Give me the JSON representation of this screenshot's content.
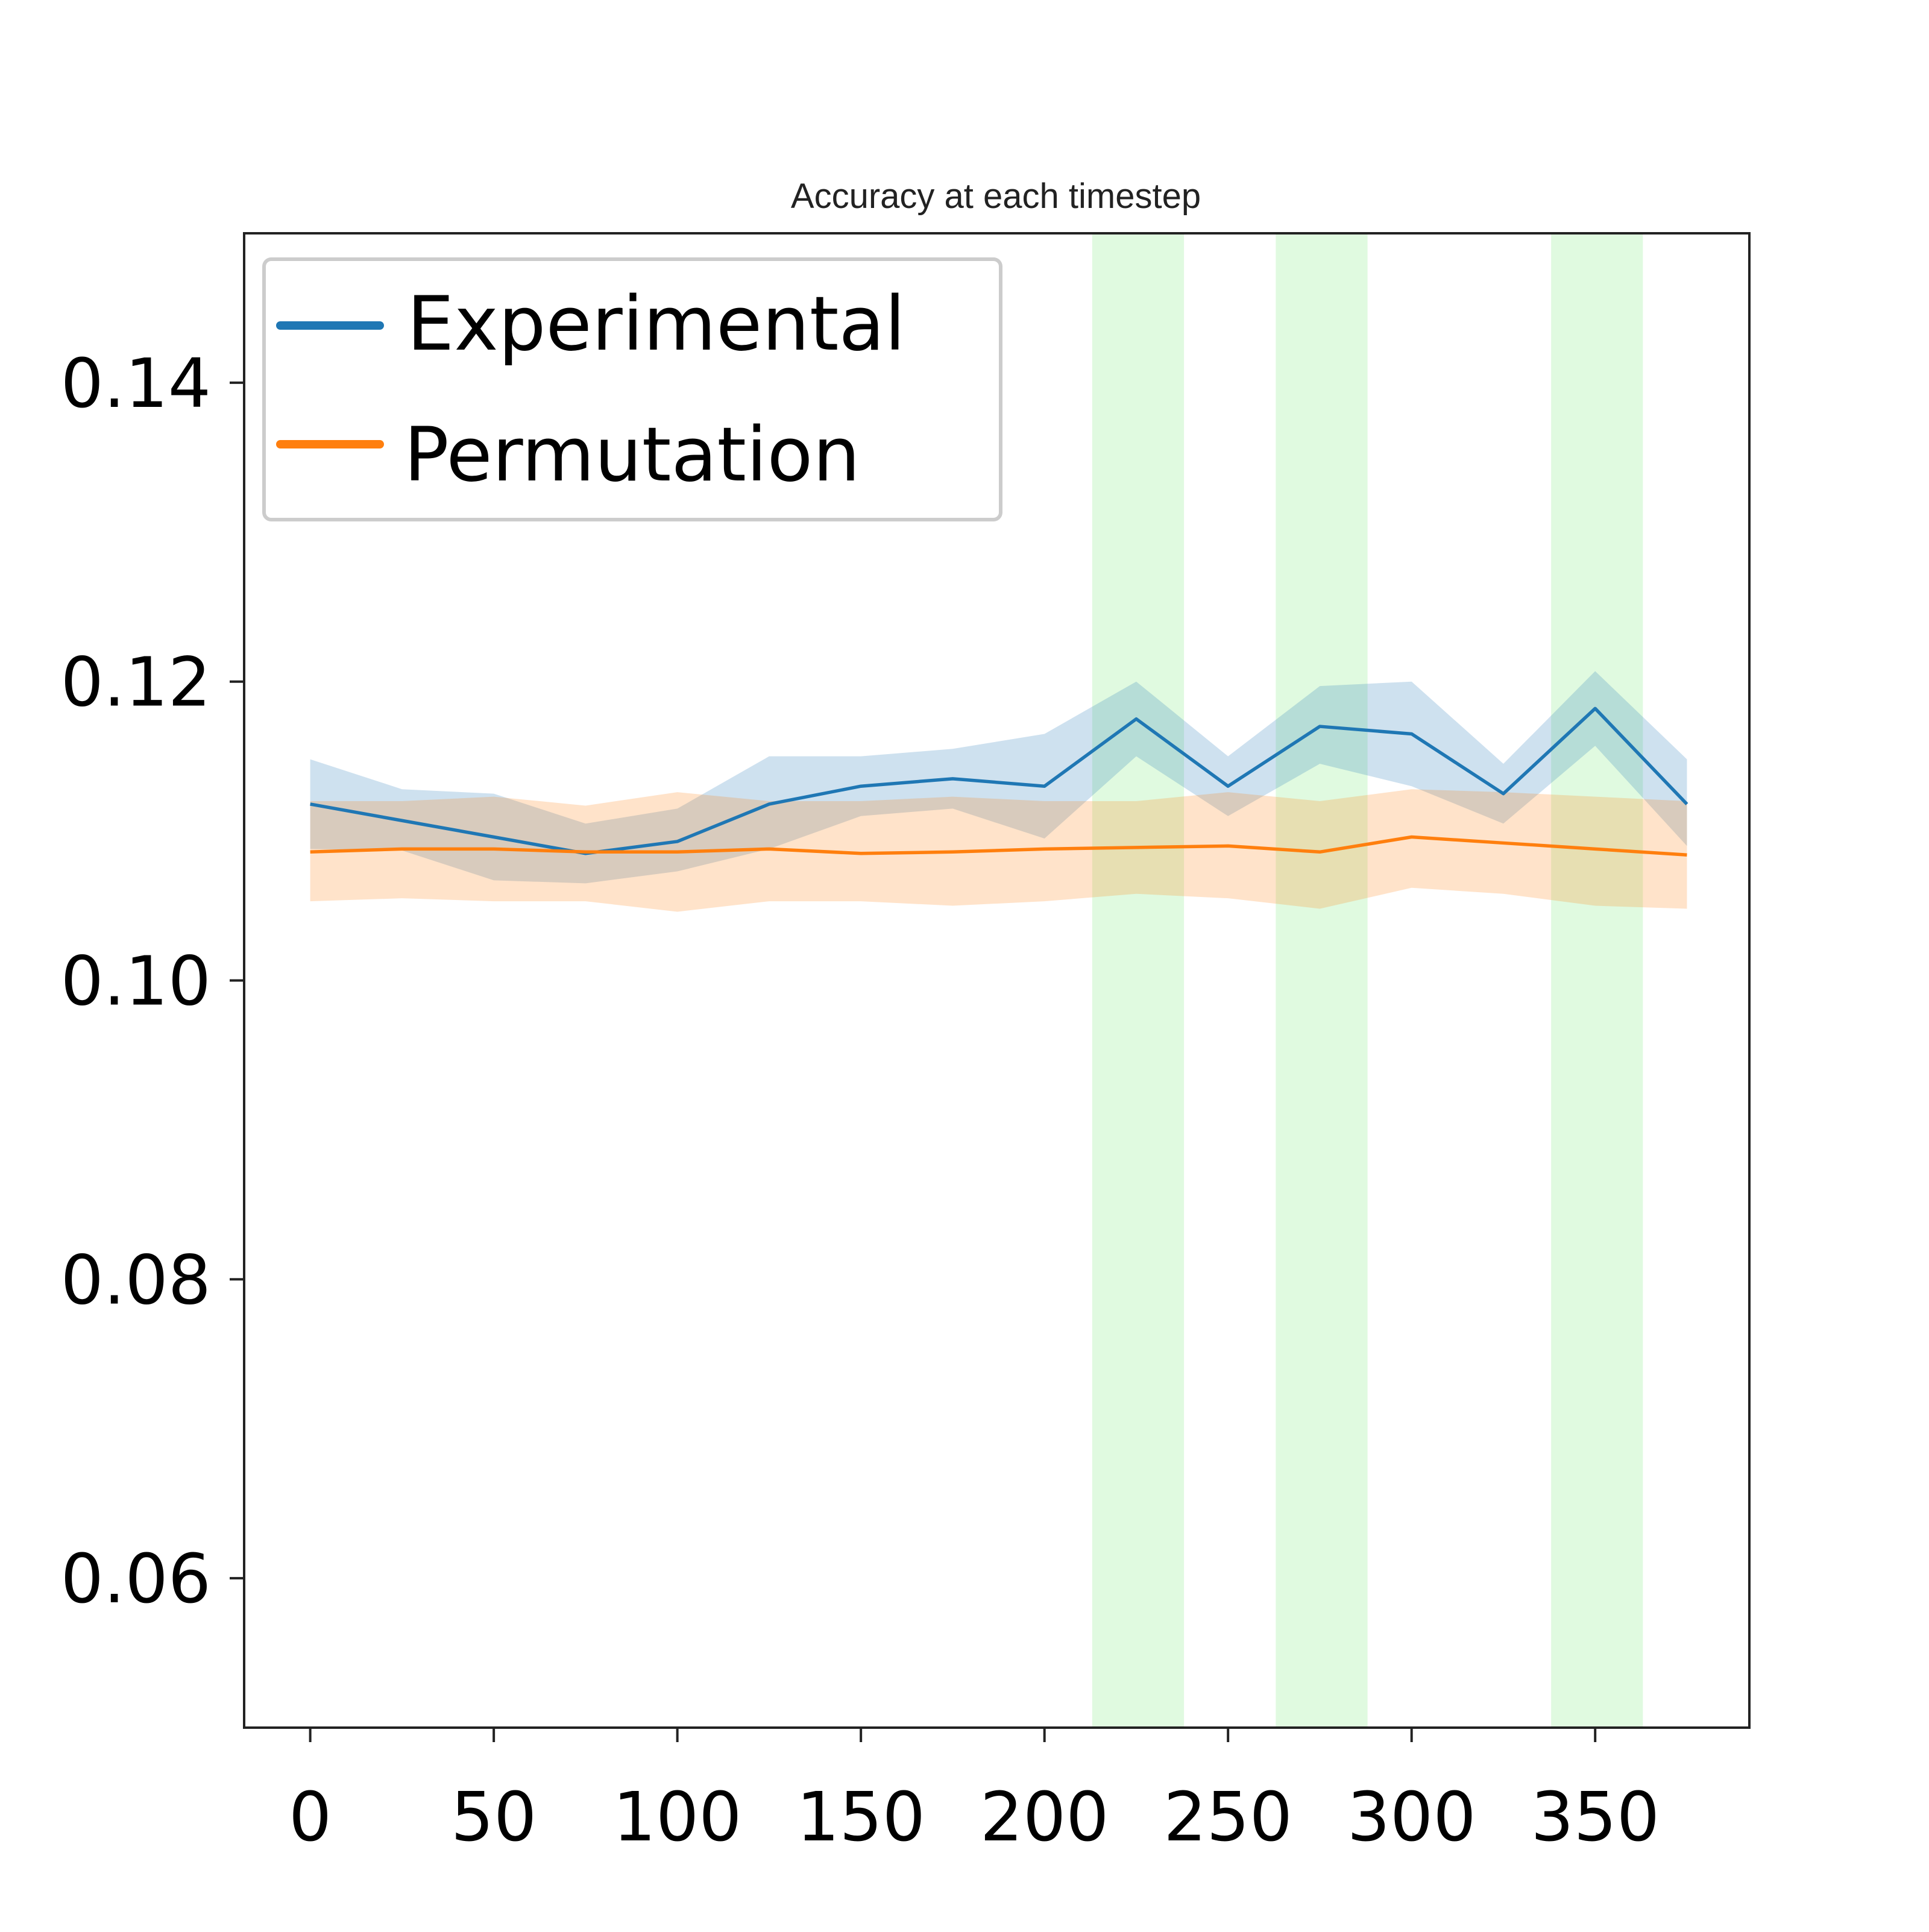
{
  "chart_data": {
    "type": "line",
    "title": "Accuracy at each timestep",
    "xlabel": "",
    "ylabel": "",
    "xlim": [
      -18,
      392
    ],
    "ylim": [
      0.05,
      0.15
    ],
    "x_ticks": [
      0,
      50,
      100,
      150,
      200,
      250,
      300,
      350
    ],
    "y_ticks": [
      0.06,
      0.08,
      0.1,
      0.12,
      0.14
    ],
    "y_tick_labels": [
      "0.06",
      "0.08",
      "0.10",
      "0.12",
      "0.14"
    ],
    "grid": false,
    "legend_position": "upper-left",
    "highlight_bands": [
      {
        "from": 213,
        "to": 238,
        "color": "#90ee90"
      },
      {
        "from": 263,
        "to": 288,
        "color": "#90ee90"
      },
      {
        "from": 338,
        "to": 363,
        "color": "#90ee90"
      }
    ],
    "x": [
      0,
      25,
      50,
      75,
      100,
      125,
      150,
      175,
      200,
      225,
      250,
      275,
      300,
      325,
      350,
      375
    ],
    "series": [
      {
        "name": "Experimental",
        "color": "#1f77b4",
        "values": [
          0.1118,
          0.1107,
          0.1096,
          0.1085,
          0.1093,
          0.1118,
          0.113,
          0.1135,
          0.113,
          0.1175,
          0.113,
          0.117,
          0.1165,
          0.1125,
          0.1182,
          0.1118
        ],
        "lower": [
          0.1088,
          0.1087,
          0.1067,
          0.1065,
          0.1073,
          0.1088,
          0.111,
          0.1115,
          0.1095,
          0.115,
          0.111,
          0.1145,
          0.113,
          0.1105,
          0.1157,
          0.109
        ],
        "upper": [
          0.1148,
          0.1128,
          0.1125,
          0.1105,
          0.1115,
          0.115,
          0.115,
          0.1155,
          0.1165,
          0.12,
          0.115,
          0.1197,
          0.12,
          0.1145,
          0.1207,
          0.1148
        ]
      },
      {
        "name": "Permutation",
        "color": "#ff7f0e",
        "values": [
          0.1086,
          0.1088,
          0.1088,
          0.1086,
          0.1086,
          0.1088,
          0.1085,
          0.1086,
          0.1088,
          0.1089,
          0.109,
          0.1086,
          0.1096,
          0.1092,
          0.1088,
          0.1084
        ],
        "lower": [
          0.1053,
          0.1055,
          0.1053,
          0.1053,
          0.1046,
          0.1053,
          0.1053,
          0.105,
          0.1053,
          0.1058,
          0.1055,
          0.1048,
          0.1062,
          0.1058,
          0.105,
          0.1048
        ],
        "upper": [
          0.112,
          0.112,
          0.1123,
          0.1117,
          0.1126,
          0.112,
          0.112,
          0.1123,
          0.112,
          0.112,
          0.1126,
          0.112,
          0.1128,
          0.1126,
          0.1123,
          0.112
        ]
      }
    ]
  }
}
